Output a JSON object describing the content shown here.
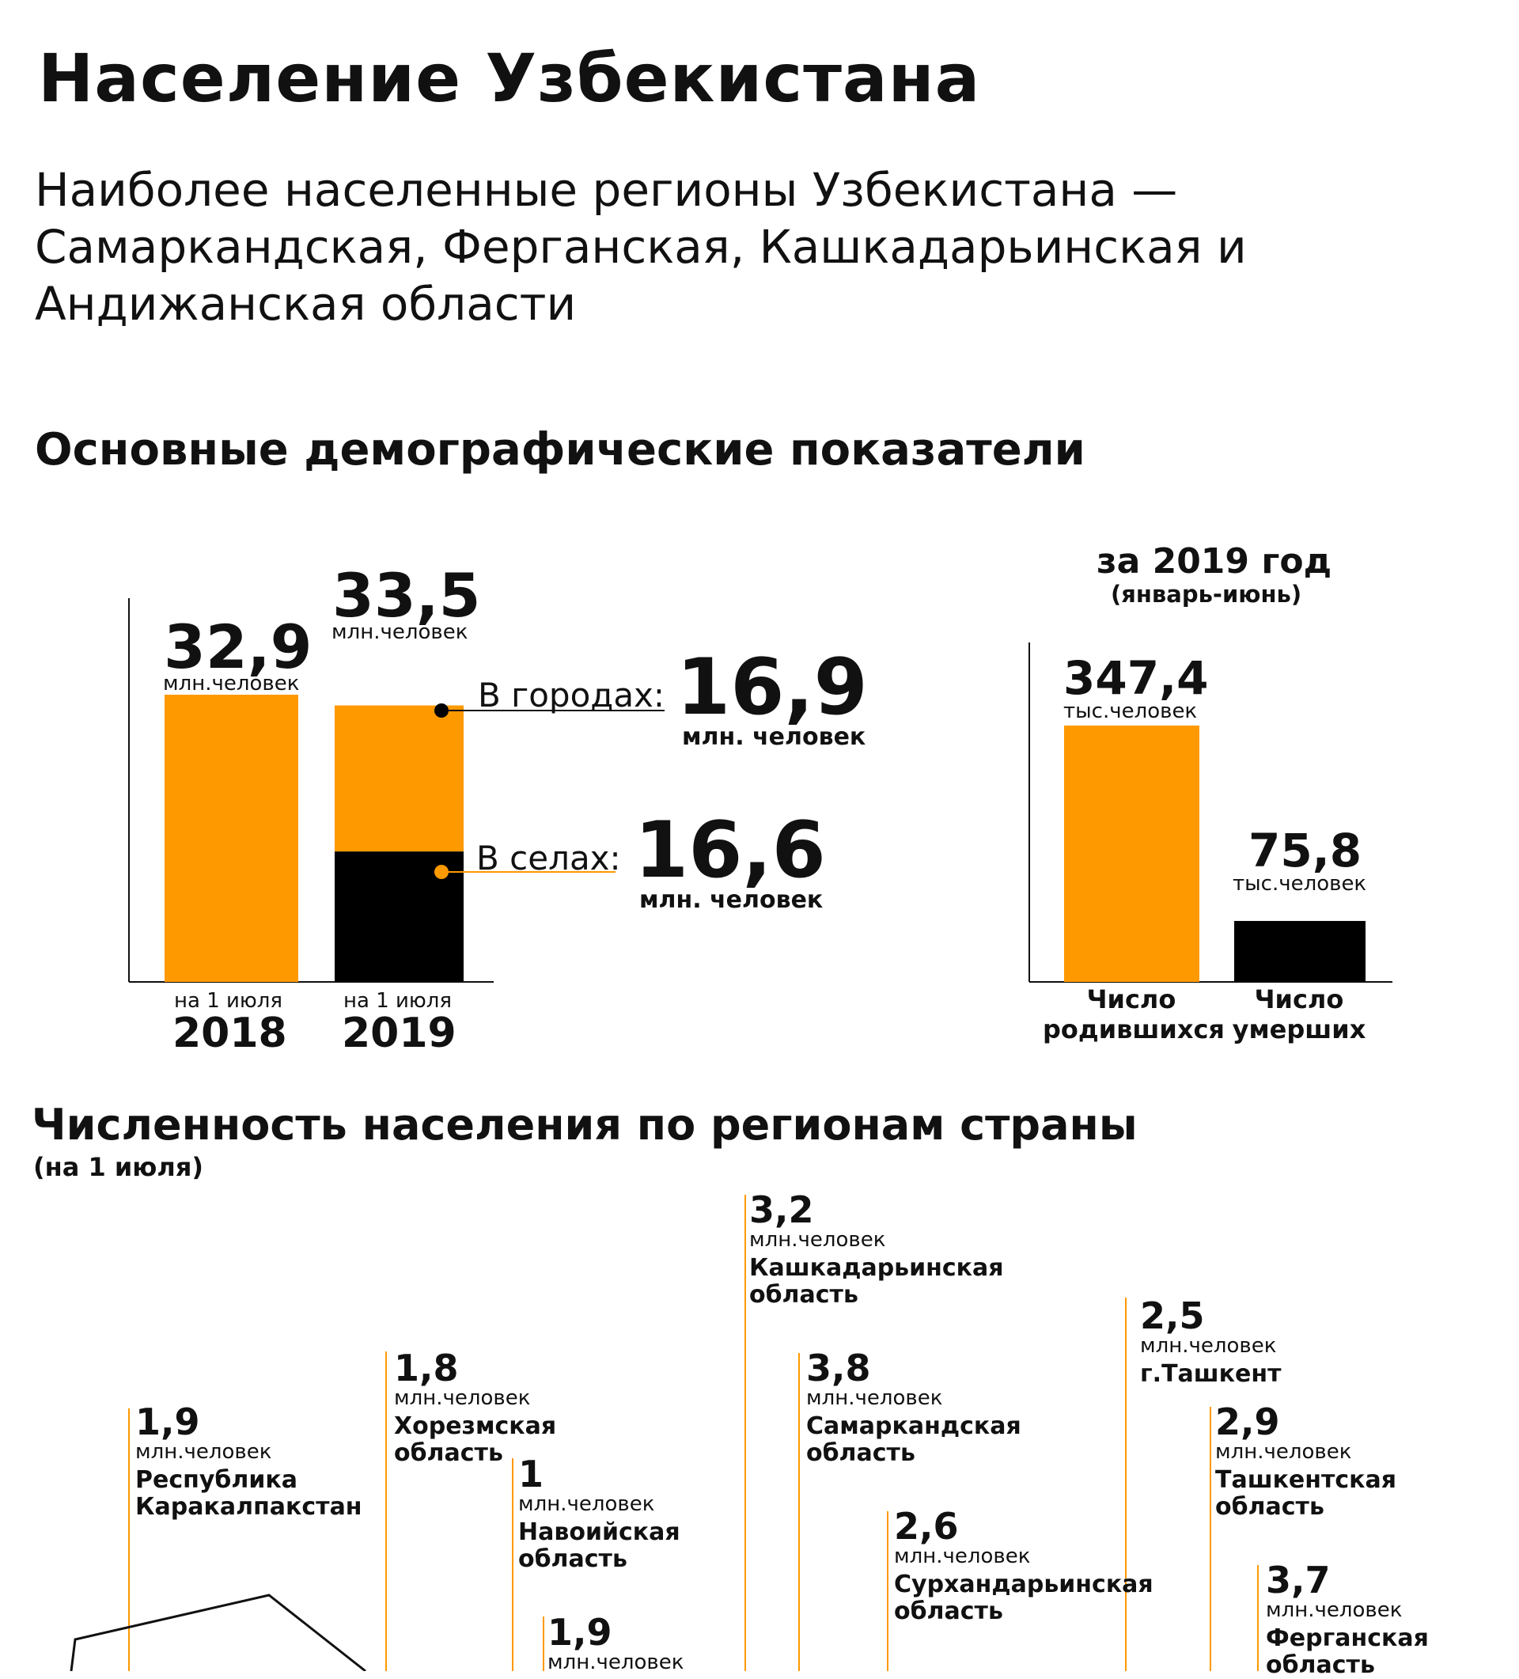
{
  "title": "Население Узбекистана",
  "subtitle": "Наиболее населенные регионы Узбекистана — Самаркандская, Ферганская, Кашкадарьинская и Андижанская области",
  "colors": {
    "accent": "#FF9900",
    "dark": "#000000",
    "text": "#111111"
  },
  "section_demography": "Основные демографические показатели",
  "section_regions": "Численность населения по регионам страны",
  "section_regions_note": "(на 1 июля)",
  "chart_data": [
    {
      "type": "bar",
      "title": "Население",
      "unit": "млн.человек",
      "categories": [
        "2018",
        "2019"
      ],
      "category_prefix": "на 1 июля",
      "totals": [
        {
          "year": "2018",
          "value": "32,9"
        },
        {
          "year": "2019",
          "value": "33,5"
        }
      ],
      "series": [
        {
          "name": "В селах",
          "label": "В селах:",
          "values": [
            null,
            16.6
          ],
          "display": "16,6",
          "unit": "млн. человек"
        },
        {
          "name": "В городах",
          "label": "В городах:",
          "values": [
            null,
            16.9
          ],
          "display": "16,9",
          "unit": "млн. человек"
        }
      ],
      "values": [
        32.9,
        33.5
      ],
      "ylim": [
        0,
        40
      ]
    },
    {
      "type": "bar",
      "title": "за 2019 год",
      "subtitle": "(январь-июнь)",
      "unit": "тыс.человек",
      "bars": [
        {
          "display": "347,4",
          "value": 347.4,
          "label_line1": "Число",
          "label_line2": "родившихся",
          "color": "#FF9900"
        },
        {
          "display": "75,8",
          "value": 75.8,
          "label_line1": "Число",
          "label_line2": "умерших",
          "color": "#000000"
        }
      ],
      "ylim": [
        0,
        420
      ]
    },
    {
      "type": "annotations",
      "unit": "млн.человек",
      "regions": [
        {
          "display": "1,9",
          "value": 1.9,
          "name_line1": "Республика",
          "name_line2": "Каракалпакстан"
        },
        {
          "display": "1,8",
          "value": 1.8,
          "name_line1": "Хорезмская",
          "name_line2": "область"
        },
        {
          "display": "1",
          "value": 1,
          "name_line1": "Навоийская",
          "name_line2": "область"
        },
        {
          "display": "1,9",
          "value": 1.9,
          "name_line1": "",
          "name_line2": ""
        },
        {
          "display": "3,2",
          "value": 3.2,
          "name_line1": "Кашкадарьинская",
          "name_line2": "область"
        },
        {
          "display": "3,8",
          "value": 3.8,
          "name_line1": "Самаркандская",
          "name_line2": "область"
        },
        {
          "display": "2,6",
          "value": 2.6,
          "name_line1": "Сурхандарьинская",
          "name_line2": "область"
        },
        {
          "display": "2,5",
          "value": 2.5,
          "name_line1": "г.Ташкент",
          "name_line2": ""
        },
        {
          "display": "2,9",
          "value": 2.9,
          "name_line1": "Ташкентская",
          "name_line2": "область"
        },
        {
          "display": "3,7",
          "value": 3.7,
          "name_line1": "Ферганская",
          "name_line2": "область"
        }
      ]
    }
  ]
}
